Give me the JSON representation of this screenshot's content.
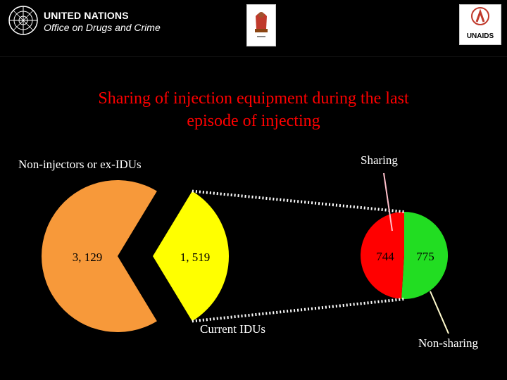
{
  "header": {
    "un_line1": "UNITED NATIONS",
    "un_line2": "Office on Drugs and Crime",
    "unaids_text": "UNAIDS"
  },
  "title_line1": "Sharing of injection equipment during the last",
  "title_line2": "episode of injecting",
  "chart_data": {
    "type": "pie",
    "title": "Sharing of injection equipment during the last episode of injecting",
    "main_pie": {
      "slices": [
        {
          "label": "Non-injectors or ex-IDUs",
          "value": 3129,
          "value_label": "3, 129",
          "color": "#f7993a"
        },
        {
          "label": "Current IDUs",
          "value": 1519,
          "value_label": "1, 519",
          "color": "#ffff00"
        }
      ]
    },
    "breakdown_pie": {
      "of": "Current IDUs",
      "slices": [
        {
          "label": "Sharing",
          "value": 744,
          "value_label": "744",
          "color": "#ff0000"
        },
        {
          "label": "Non-sharing",
          "value": 775,
          "value_label": "775",
          "color": "#22dd22"
        }
      ]
    }
  }
}
